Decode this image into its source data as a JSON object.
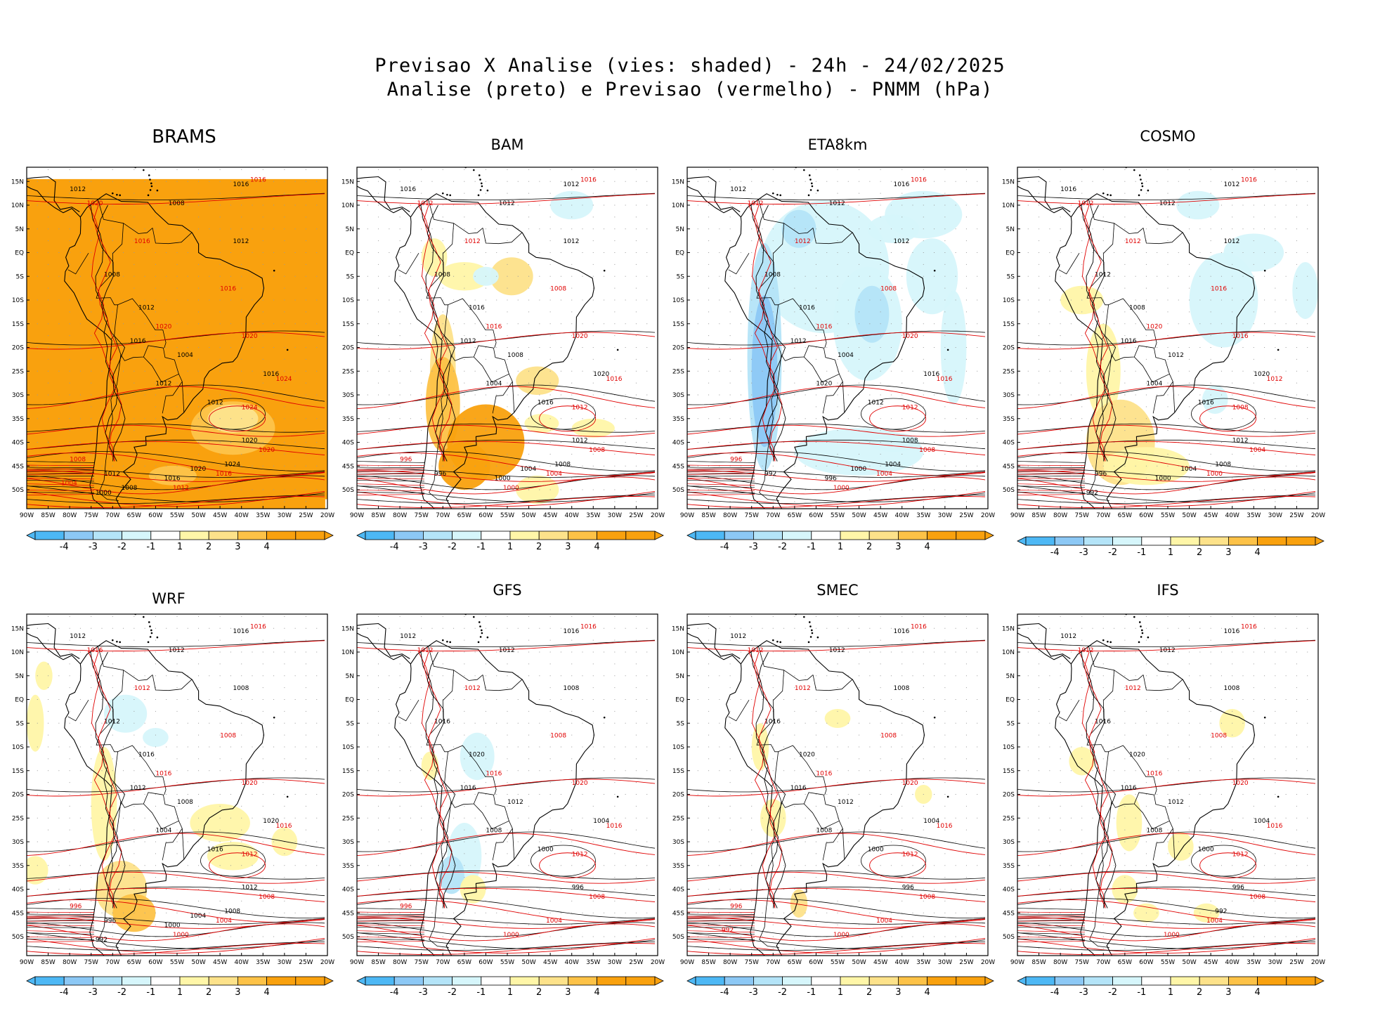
{
  "title": {
    "line1": "Previsao X Analise (vies: shaded) - 24h - 24/02/2025",
    "line2": "Analise (preto) e Previsao (vermelho) - PNMM (hPa)"
  },
  "axes": {
    "lat_labels": [
      "15N",
      "10N",
      "5N",
      "EQ",
      "5S",
      "10S",
      "15S",
      "20S",
      "25S",
      "30S",
      "35S",
      "40S",
      "45S",
      "50S"
    ],
    "lon_labels": [
      "90W",
      "85W",
      "80W",
      "75W",
      "70W",
      "65W",
      "60W",
      "55W",
      "50W",
      "45W",
      "40W",
      "35W",
      "30W",
      "25W",
      "20W"
    ]
  },
  "colorbar": {
    "labels": [
      "-4",
      "-3",
      "-2",
      "-1",
      "1",
      "2",
      "3",
      "4"
    ],
    "colors": [
      "#4db8f5",
      "#8cc8f5",
      "#b4e4f8",
      "#d6f6fb",
      "#ffffff",
      "#fff6a8",
      "#fde28a",
      "#fdc247",
      "#f9a10e",
      "#f9a10e"
    ]
  },
  "contour_colors": {
    "analysis": "#000000",
    "forecast": "#e00000"
  },
  "panels": [
    {
      "id": "brams",
      "model": "BRAMS",
      "bias": "warm",
      "labels": {
        "black": [
          "1016",
          "1012",
          "1008",
          "1012",
          "1008",
          "1012",
          "1016",
          "1004",
          "1012",
          "1016",
          "1012",
          "1020",
          "1024",
          "1020",
          "1016",
          "1012",
          "1000",
          "1008"
        ],
        "red": [
          "1016",
          "1020",
          "1016",
          "1016",
          "1020",
          "1020",
          "1024",
          "1024",
          "1020",
          "1016",
          "1012",
          "1008",
          "1004"
        ]
      }
    },
    {
      "id": "bam",
      "model": "BAM",
      "bias": "mixed",
      "labels": {
        "black": [
          "1012",
          "1016",
          "1012",
          "1012",
          "1008",
          "1016",
          "1012",
          "1008",
          "1004",
          "1020",
          "1016",
          "1012",
          "1008",
          "1004",
          "1000",
          "996"
        ],
        "red": [
          "1016",
          "1012",
          "1012",
          "1008",
          "1016",
          "1020",
          "1016",
          "1012",
          "1008",
          "1004",
          "1000",
          "996"
        ]
      }
    },
    {
      "id": "eta8km",
      "model": "ETA8km",
      "bias": "cool",
      "labels": {
        "black": [
          "1016",
          "1012",
          "1012",
          "1012",
          "1008",
          "1016",
          "1012",
          "1004",
          "1020",
          "1016",
          "1012",
          "1008",
          "1004",
          "1000",
          "996",
          "992"
        ],
        "red": [
          "1016",
          "1012",
          "1012",
          "1008",
          "1016",
          "1020",
          "1016",
          "1012",
          "1008",
          "1004",
          "1000",
          "996"
        ]
      }
    },
    {
      "id": "cosmo",
      "model": "COSMO",
      "bias": "mixed",
      "labels": {
        "black": [
          "1012",
          "1016",
          "1012",
          "1012",
          "1012",
          "1008",
          "1016",
          "1012",
          "1004",
          "1020",
          "1016",
          "1012",
          "1008",
          "1004",
          "1000",
          "996",
          "992"
        ],
        "red": [
          "1016",
          "1012",
          "1012",
          "1016",
          "1020",
          "1016",
          "1012",
          "1008",
          "1004",
          "1000"
        ]
      }
    },
    {
      "id": "wrf",
      "model": "WRF",
      "bias": "mixed",
      "labels": {
        "black": [
          "1016",
          "1012",
          "1012",
          "1008",
          "1012",
          "1016",
          "1012",
          "1008",
          "1004",
          "1020",
          "1016",
          "1012",
          "1008",
          "1004",
          "1000",
          "996",
          "992"
        ],
        "red": [
          "1016",
          "1016",
          "1012",
          "1008",
          "1016",
          "1020",
          "1016",
          "1012",
          "1008",
          "1004",
          "1000",
          "996"
        ]
      }
    },
    {
      "id": "gfs",
      "model": "GFS",
      "bias": "slight",
      "labels": {
        "black": [
          "1016",
          "1012",
          "1012",
          "1008",
          "1016",
          "1020",
          "1016",
          "1012",
          "1008",
          "1004",
          "1000",
          "996"
        ],
        "red": [
          "1016",
          "1012",
          "1012",
          "1008",
          "1016",
          "1020",
          "1016",
          "1012",
          "1008",
          "1004",
          "1000",
          "996"
        ]
      }
    },
    {
      "id": "smec",
      "model": "SMEC",
      "bias": "slight",
      "labels": {
        "black": [
          "1016",
          "1012",
          "1012",
          "1008",
          "1016",
          "1020",
          "1016",
          "1012",
          "1008",
          "1004",
          "1000",
          "996"
        ],
        "red": [
          "1016",
          "1012",
          "1012",
          "1008",
          "1016",
          "1020",
          "1016",
          "1012",
          "1008",
          "1004",
          "1000",
          "996",
          "992"
        ]
      }
    },
    {
      "id": "ifs",
      "model": "IFS",
      "bias": "slight",
      "labels": {
        "black": [
          "1016",
          "1012",
          "1012",
          "1008",
          "1016",
          "1020",
          "1016",
          "1012",
          "1008",
          "1004",
          "1000",
          "996",
          "992"
        ],
        "red": [
          "1016",
          "1012",
          "1012",
          "1008",
          "1016",
          "1020",
          "1016",
          "1012",
          "1008",
          "1004",
          "1000"
        ]
      }
    }
  ]
}
